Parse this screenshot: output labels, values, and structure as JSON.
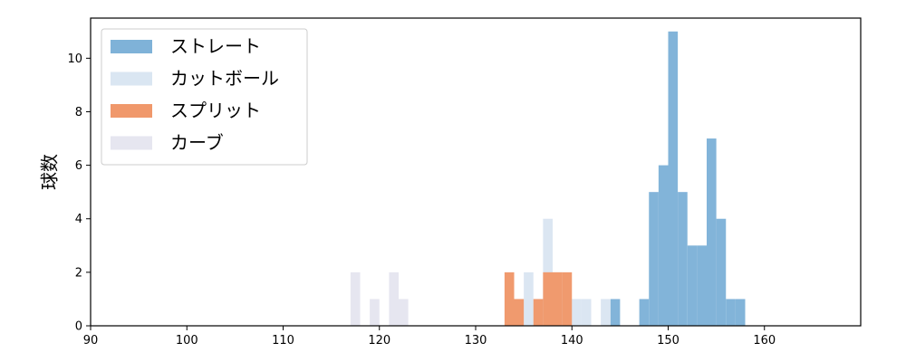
{
  "chart_data": {
    "type": "histogram",
    "ylabel": "球数",
    "xlim": [
      90,
      170
    ],
    "ylim": [
      0,
      11.5
    ],
    "xticks": [
      90,
      100,
      110,
      120,
      130,
      140,
      150,
      160
    ],
    "yticks": [
      0,
      2,
      4,
      6,
      8,
      10
    ],
    "bin_width": 1,
    "legend_position": "upper-left",
    "series": [
      {
        "name": "ストレート",
        "color": "#7fb2d8",
        "bins": [
          [
            144,
            1
          ],
          [
            147,
            1
          ],
          [
            148,
            5
          ],
          [
            149,
            6
          ],
          [
            150,
            11
          ],
          [
            151,
            5
          ],
          [
            152,
            3
          ],
          [
            153,
            3
          ],
          [
            154,
            7
          ],
          [
            155,
            4
          ],
          [
            156,
            1
          ],
          [
            157,
            1
          ]
        ]
      },
      {
        "name": "カットボール",
        "color": "#dae6f2",
        "bins": [
          [
            134,
            1
          ],
          [
            135,
            2
          ],
          [
            136,
            1
          ],
          [
            137,
            4
          ],
          [
            138,
            2
          ],
          [
            139,
            1
          ],
          [
            140,
            1
          ],
          [
            141,
            1
          ],
          [
            143,
            1
          ]
        ]
      },
      {
        "name": "スプリット",
        "color": "#f0986b",
        "bins": [
          [
            133,
            2
          ],
          [
            134,
            1
          ],
          [
            136,
            1
          ],
          [
            137,
            2
          ],
          [
            138,
            2
          ],
          [
            139,
            2
          ]
        ]
      },
      {
        "name": "カーブ",
        "color": "#e6e6f0",
        "bins": [
          [
            117,
            2
          ],
          [
            119,
            1
          ],
          [
            121,
            2
          ],
          [
            122,
            1
          ]
        ]
      }
    ]
  }
}
